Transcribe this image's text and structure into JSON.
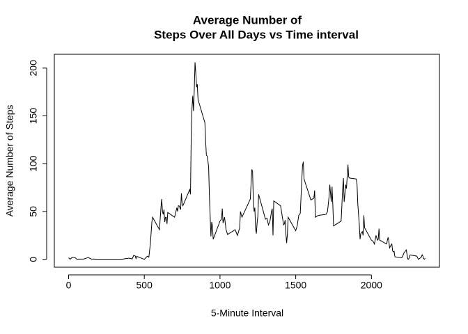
{
  "chart_data": {
    "type": "line",
    "title": [
      "Average Number of",
      "Steps Over All Days vs Time interval"
    ],
    "x_label": "5-Minute Interval",
    "y_label": "Average Number of Steps",
    "color": "#000000",
    "xlim": [
      -94.2,
      2449.2
    ],
    "ylim": [
      -8.25,
      214.42
    ],
    "xticks": [
      0,
      500,
      1000,
      1500,
      2000
    ],
    "yticks": [
      0,
      50,
      100,
      150,
      200
    ],
    "x": [
      0,
      10,
      25,
      45,
      55,
      100,
      130,
      150,
      200,
      300,
      350,
      400,
      420,
      430,
      440,
      445,
      450,
      500,
      520,
      530,
      540,
      550,
      555,
      600,
      610,
      615,
      620,
      625,
      630,
      635,
      640,
      645,
      650,
      655,
      700,
      715,
      720,
      725,
      730,
      740,
      745,
      750,
      755,
      800,
      805,
      810,
      815,
      820,
      825,
      830,
      835,
      840,
      845,
      850,
      855,
      900,
      905,
      910,
      915,
      920,
      925,
      930,
      935,
      940,
      945,
      950,
      955,
      1000,
      1010,
      1015,
      1020,
      1030,
      1040,
      1050,
      1100,
      1115,
      1130,
      1135,
      1145,
      1200,
      1210,
      1215,
      1220,
      1225,
      1230,
      1235,
      1240,
      1245,
      1250,
      1255,
      1300,
      1310,
      1320,
      1330,
      1340,
      1345,
      1350,
      1355,
      1400,
      1420,
      1425,
      1430,
      1435,
      1440,
      1445,
      1450,
      1500,
      1510,
      1520,
      1530,
      1535,
      1540,
      1545,
      1550,
      1555,
      1600,
      1620,
      1625,
      1630,
      1640,
      1650,
      1700,
      1710,
      1720,
      1725,
      1735,
      1740,
      1745,
      1750,
      1800,
      1810,
      1815,
      1820,
      1825,
      1830,
      1835,
      1845,
      1850,
      1855,
      1900,
      1905,
      1910,
      1920,
      1925,
      1930,
      1940,
      1945,
      1950,
      1955,
      2000,
      2010,
      2020,
      2030,
      2040,
      2045,
      2050,
      2055,
      2100,
      2110,
      2115,
      2120,
      2130,
      2135,
      2140,
      2145,
      2150,
      2155,
      2200,
      2210,
      2215,
      2225,
      2230,
      2240,
      2245,
      2250,
      2255,
      2300,
      2310,
      2320,
      2330,
      2335,
      2340,
      2345,
      2350,
      2355
    ],
    "values": [
      1.7,
      0.1,
      2.1,
      1.5,
      0.1,
      0.3,
      1.8,
      0.3,
      0,
      0,
      0,
      1.2,
      0.4,
      4.1,
      3.5,
      0.8,
      3.1,
      0,
      3.3,
      2.2,
      16,
      39,
      44,
      31,
      54,
      63,
      50,
      47,
      52,
      39,
      44,
      44,
      37,
      49,
      44,
      54,
      50,
      56,
      56,
      52,
      69,
      58,
      56,
      73,
      68,
      129,
      158,
      171,
      155,
      177,
      206,
      195,
      180,
      183,
      167,
      143,
      124,
      109,
      108,
      103,
      96,
      66,
      45,
      24,
      39,
      35,
      21,
      40,
      42,
      53,
      38,
      44,
      31,
      26,
      31,
      25,
      33,
      50,
      44,
      63,
      94,
      92,
      63,
      50,
      54,
      32,
      27,
      38,
      45,
      68,
      42,
      43,
      36,
      40,
      50,
      53,
      25,
      61,
      56,
      36,
      37,
      41,
      27,
      17,
      26,
      44,
      30,
      35,
      46,
      48,
      65,
      83,
      98,
      102,
      84,
      62,
      64,
      72,
      44,
      45,
      46,
      47,
      50,
      65,
      78,
      60,
      76,
      57,
      35,
      40,
      74,
      85,
      60,
      68,
      78,
      74,
      99,
      86,
      85,
      84,
      78,
      58,
      36,
      21,
      27,
      29,
      25,
      46,
      33,
      20,
      19,
      16,
      25,
      20,
      21,
      32,
      20,
      16,
      23,
      19,
      12,
      15,
      16,
      8.7,
      7.8,
      8.4,
      2.6,
      1.5,
      4.6,
      6.8,
      8.7,
      9.8,
      0.3,
      0.1,
      1.6,
      4.6,
      3.3,
      0,
      1,
      2.6,
      4.7,
      3.3,
      0.6,
      0.2,
      1.1
    ]
  }
}
